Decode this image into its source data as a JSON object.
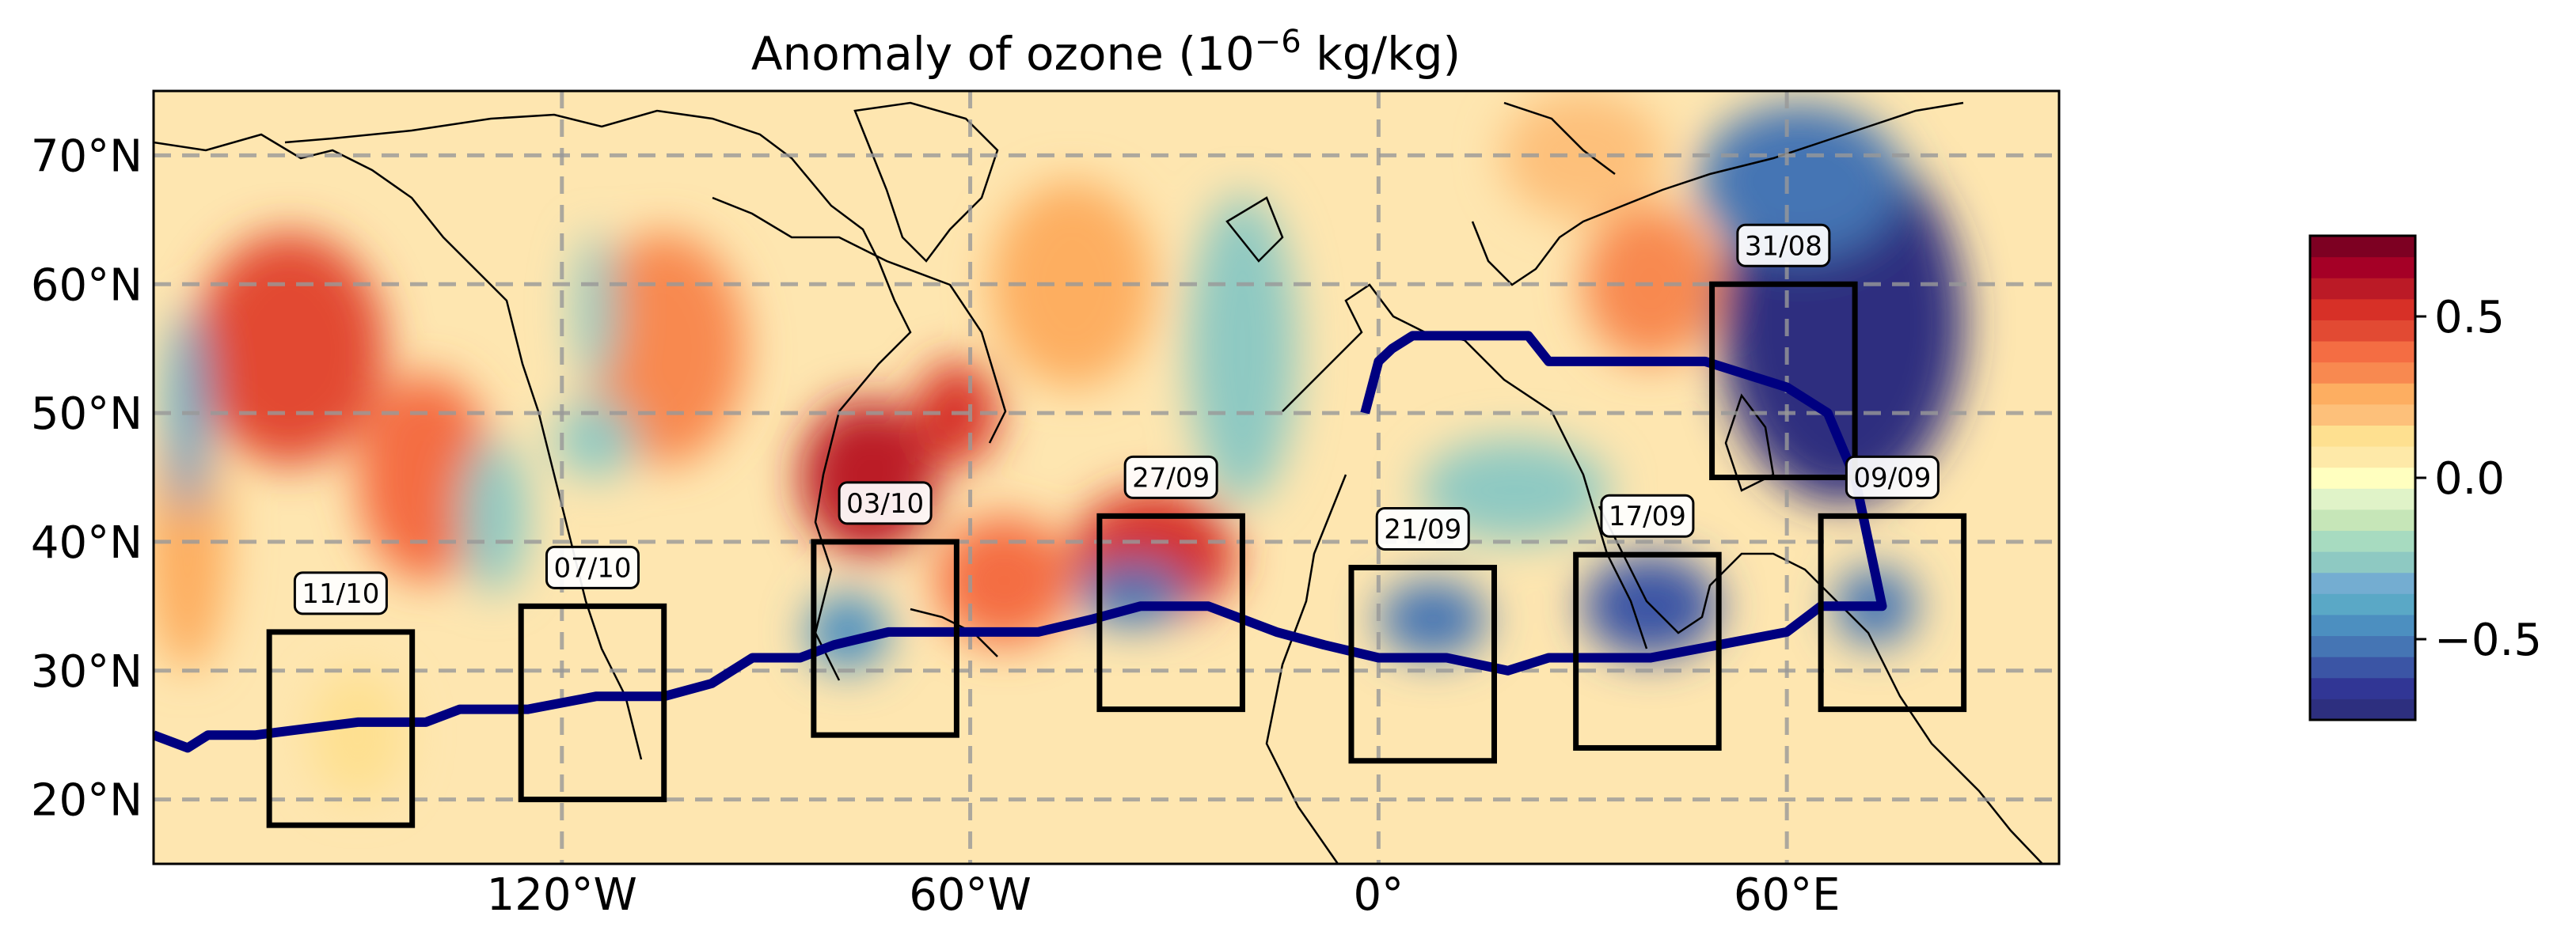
{
  "chart_data": {
    "type": "heatmap",
    "title": "Anomaly of ozone (10",
    "title_sup": "−6",
    "title_suffix": " kg/kg)",
    "x_range_lon": [
      -180,
      100
    ],
    "y_range_lat": [
      15,
      75
    ],
    "x_ticks": [
      {
        "lon": -120,
        "label": "120°W"
      },
      {
        "lon": -60,
        "label": "60°W"
      },
      {
        "lon": 0,
        "label": "0°"
      },
      {
        "lon": 60,
        "label": "60°E"
      }
    ],
    "y_ticks": [
      {
        "lat": 70,
        "label": "70°N"
      },
      {
        "lat": 60,
        "label": "60°N"
      },
      {
        "lat": 50,
        "label": "50°N"
      },
      {
        "lat": 40,
        "label": "40°N"
      },
      {
        "lat": 30,
        "label": "30°N"
      },
      {
        "lat": 20,
        "label": "20°N"
      }
    ],
    "grid": true,
    "colormap": "RdYlBu_r",
    "colorbar": {
      "vmin": -0.75,
      "vmax": 0.75,
      "ticks": [
        {
          "value": 0.5,
          "label": "0.5"
        },
        {
          "value": 0.0,
          "label": "0.0"
        },
        {
          "value": -0.5,
          "label": "−0.5"
        }
      ],
      "colors": [
        "#2d2f7f",
        "#313695",
        "#3b55a5",
        "#4575b4",
        "#4c8fc0",
        "#5aa8c6",
        "#74add1",
        "#8ec9c2",
        "#a7dbc0",
        "#c6e6b8",
        "#e0f3c8",
        "#ffffbf",
        "#fee9a8",
        "#fee090",
        "#fdc07a",
        "#fdae61",
        "#f88950",
        "#f46d43",
        "#e24a33",
        "#d73027",
        "#bb1a26",
        "#a50026",
        "#7d0022"
      ]
    },
    "trajectory": [
      {
        "lon": -180,
        "lat": 25
      },
      {
        "lon": -175,
        "lat": 24
      },
      {
        "lon": -172,
        "lat": 25
      },
      {
        "lon": -165,
        "lat": 25
      },
      {
        "lon": -150,
        "lat": 26
      },
      {
        "lon": -140,
        "lat": 26
      },
      {
        "lon": -135,
        "lat": 27
      },
      {
        "lon": -125,
        "lat": 27
      },
      {
        "lon": -115,
        "lat": 28
      },
      {
        "lon": -105,
        "lat": 28
      },
      {
        "lon": -98,
        "lat": 29
      },
      {
        "lon": -92,
        "lat": 31
      },
      {
        "lon": -85,
        "lat": 31
      },
      {
        "lon": -80,
        "lat": 32
      },
      {
        "lon": -72,
        "lat": 33
      },
      {
        "lon": -60,
        "lat": 33
      },
      {
        "lon": -50,
        "lat": 33
      },
      {
        "lon": -42,
        "lat": 34
      },
      {
        "lon": -35,
        "lat": 35
      },
      {
        "lon": -25,
        "lat": 35
      },
      {
        "lon": -15,
        "lat": 33
      },
      {
        "lon": -8,
        "lat": 32
      },
      {
        "lon": 0,
        "lat": 31
      },
      {
        "lon": 10,
        "lat": 31
      },
      {
        "lon": 19,
        "lat": 30
      },
      {
        "lon": 25,
        "lat": 31
      },
      {
        "lon": 40,
        "lat": 31
      },
      {
        "lon": 50,
        "lat": 32
      },
      {
        "lon": 60,
        "lat": 33
      },
      {
        "lon": 65,
        "lat": 35
      },
      {
        "lon": 74,
        "lat": 35
      },
      {
        "lon": 72,
        "lat": 40
      },
      {
        "lon": 70,
        "lat": 45
      },
      {
        "lon": 66,
        "lat": 50
      },
      {
        "lon": 60,
        "lat": 52
      },
      {
        "lon": 48,
        "lat": 54
      },
      {
        "lon": 25,
        "lat": 54
      },
      {
        "lon": 22,
        "lat": 56
      },
      {
        "lon": 5,
        "lat": 56
      },
      {
        "lon": 2,
        "lat": 55
      },
      {
        "lon": 0,
        "lat": 54
      },
      {
        "lon": -2,
        "lat": 50
      }
    ],
    "boxes": [
      {
        "label": "11/10",
        "lon0": -163,
        "lon1": -142,
        "lat0": 18,
        "lat1": 33
      },
      {
        "label": "07/10",
        "lon0": -126,
        "lon1": -105,
        "lat0": 20,
        "lat1": 35
      },
      {
        "label": "03/10",
        "lon0": -83,
        "lon1": -62,
        "lat0": 25,
        "lat1": 40
      },
      {
        "label": "27/09",
        "lon0": -41,
        "lon1": -20,
        "lat0": 27,
        "lat1": 42
      },
      {
        "label": "21/09",
        "lon0": -4,
        "lon1": 17,
        "lat0": 23,
        "lat1": 38
      },
      {
        "label": "17/09",
        "lon0": 29,
        "lon1": 50,
        "lat0": 24,
        "lat1": 39
      },
      {
        "label": "31/08",
        "lon0": 49,
        "lon1": 70,
        "lat0": 45,
        "lat1": 60
      },
      {
        "label": "09/09",
        "lon0": 65,
        "lon1": 86,
        "lat0": 27,
        "lat1": 42
      }
    ],
    "anomaly_blobs": [
      {
        "lon": -160,
        "lat": 55,
        "rlon": 14,
        "rlat": 9,
        "value": 0.45
      },
      {
        "lon": -140,
        "lat": 45,
        "rlon": 10,
        "rlat": 8,
        "value": 0.4
      },
      {
        "lon": -105,
        "lat": 55,
        "rlon": 12,
        "rlat": 9,
        "value": 0.35
      },
      {
        "lon": -75,
        "lat": 45,
        "rlon": 10,
        "rlat": 6,
        "value": 0.6
      },
      {
        "lon": -62,
        "lat": 50,
        "rlon": 6,
        "rlat": 4,
        "value": 0.55
      },
      {
        "lon": -33,
        "lat": 39,
        "rlon": 12,
        "rlat": 5,
        "value": 0.55
      },
      {
        "lon": -55,
        "lat": 37,
        "rlon": 10,
        "rlat": 5,
        "value": 0.4
      },
      {
        "lon": -45,
        "lat": 60,
        "rlon": 12,
        "rlat": 8,
        "value": 0.3
      },
      {
        "lon": -175,
        "lat": 40,
        "rlon": 6,
        "rlat": 10,
        "value": 0.3
      },
      {
        "lon": -20,
        "lat": 55,
        "rlon": 8,
        "rlat": 12,
        "value": -0.25
      },
      {
        "lon": 30,
        "lat": 70,
        "rlon": 12,
        "rlat": 5,
        "value": 0.2
      },
      {
        "lon": 40,
        "lat": 60,
        "rlon": 10,
        "rlat": 6,
        "value": 0.35
      },
      {
        "lon": 20,
        "lat": 44,
        "rlon": 14,
        "rlat": 4,
        "value": -0.3
      },
      {
        "lon": 68,
        "lat": 57,
        "rlon": 18,
        "rlat": 14,
        "value": -0.75
      },
      {
        "lon": 62,
        "lat": 68,
        "rlon": 15,
        "rlat": 6,
        "value": -0.55
      },
      {
        "lon": 40,
        "lat": 35,
        "rlon": 10,
        "rlat": 4,
        "value": -0.6
      },
      {
        "lon": 73,
        "lat": 35,
        "rlon": 6,
        "rlat": 3,
        "value": -0.55
      },
      {
        "lon": 8,
        "lat": 34,
        "rlon": 8,
        "rlat": 3,
        "value": -0.55
      },
      {
        "lon": -36,
        "lat": 36,
        "rlon": 8,
        "rlat": 2.5,
        "value": -0.55
      },
      {
        "lon": -78,
        "lat": 33,
        "rlon": 6,
        "rlat": 3,
        "value": -0.5
      },
      {
        "lon": -130,
        "lat": 42,
        "rlon": 5,
        "rlat": 6,
        "value": -0.3
      },
      {
        "lon": -115,
        "lat": 48,
        "rlon": 6,
        "rlat": 3,
        "value": -0.25
      },
      {
        "lon": -115,
        "lat": 58,
        "rlon": 3,
        "rlat": 6,
        "value": -0.25
      },
      {
        "lon": -175,
        "lat": 50,
        "rlon": 3,
        "rlat": 8,
        "value": -0.4
      },
      {
        "lon": -150,
        "lat": 25,
        "rlon": 7,
        "rlat": 5,
        "value": 0.15
      }
    ]
  }
}
